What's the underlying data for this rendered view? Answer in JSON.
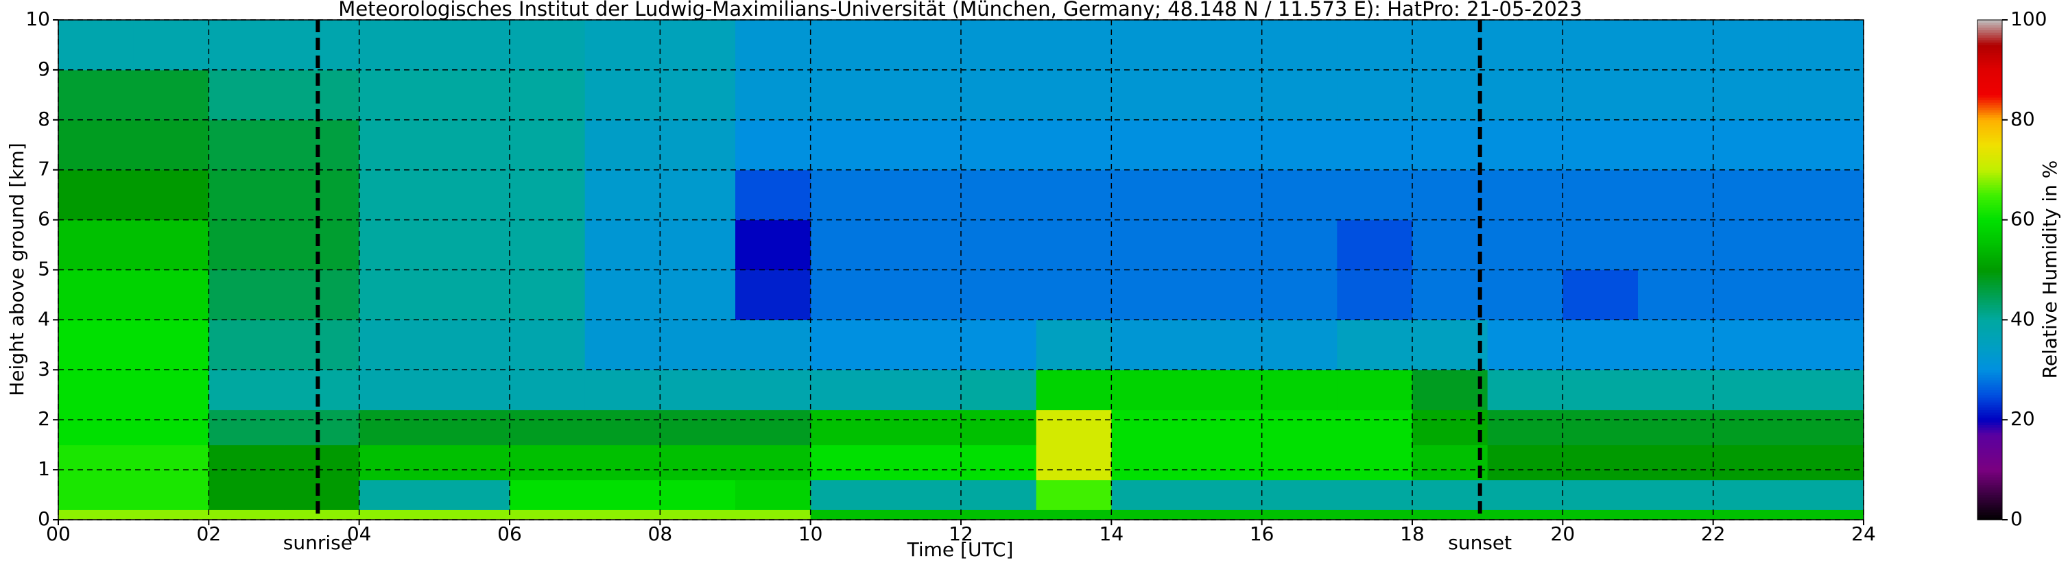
{
  "chart_data": {
    "type": "heatmap",
    "title": "Meteorologisches Institut der Ludwig-Maximilians-Universität (München, Germany; 48.148 N / 11.573 E):    HatPro: 21-05-2023",
    "x_label": "Time [UTC]",
    "y_label": "Height above ground [km]",
    "colorbar_label": "Relative Humidity in %",
    "x_bins": [
      0,
      1,
      2,
      3,
      4,
      5,
      6,
      7,
      8,
      9,
      10,
      11,
      12,
      13,
      14,
      15,
      16,
      17,
      18,
      19,
      20,
      21,
      22,
      23,
      24
    ],
    "y_bins": [
      0,
      0.2,
      0.8,
      1.5,
      2.2,
      3,
      4,
      5,
      6,
      7,
      8,
      9,
      10
    ],
    "values": [
      [
        68,
        68,
        68,
        68,
        68,
        68,
        68,
        68,
        68,
        68,
        55,
        55,
        55,
        55,
        55,
        55,
        55,
        55,
        55,
        55,
        55,
        55,
        55,
        55
      ],
      [
        62,
        62,
        50,
        50,
        40,
        40,
        60,
        60,
        60,
        58,
        40,
        40,
        40,
        65,
        40,
        40,
        40,
        40,
        40,
        40,
        40,
        40,
        40,
        40
      ],
      [
        62,
        62,
        50,
        50,
        55,
        55,
        55,
        55,
        55,
        55,
        60,
        60,
        60,
        72,
        60,
        60,
        60,
        60,
        55,
        50,
        50,
        50,
        50,
        50
      ],
      [
        60,
        60,
        45,
        45,
        48,
        48,
        48,
        48,
        48,
        48,
        55,
        55,
        55,
        72,
        60,
        60,
        60,
        60,
        52,
        48,
        48,
        48,
        48,
        48
      ],
      [
        60,
        60,
        40,
        40,
        38,
        38,
        38,
        38,
        38,
        38,
        38,
        38,
        40,
        58,
        58,
        58,
        58,
        58,
        48,
        40,
        40,
        40,
        40,
        40
      ],
      [
        60,
        60,
        42,
        42,
        38,
        38,
        38,
        32,
        32,
        32,
        30,
        30,
        30,
        35,
        32,
        32,
        32,
        35,
        35,
        30,
        30,
        30,
        30,
        30
      ],
      [
        58,
        58,
        45,
        45,
        40,
        40,
        40,
        32,
        32,
        22,
        28,
        28,
        28,
        28,
        28,
        28,
        28,
        26,
        28,
        28,
        25,
        28,
        28,
        28
      ],
      [
        55,
        55,
        47,
        47,
        40,
        40,
        40,
        32,
        32,
        20,
        28,
        28,
        28,
        28,
        28,
        28,
        28,
        25,
        28,
        28,
        28,
        28,
        28,
        28
      ],
      [
        50,
        50,
        47,
        47,
        40,
        40,
        40,
        33,
        33,
        25,
        28,
        28,
        28,
        28,
        28,
        28,
        28,
        28,
        28,
        28,
        28,
        28,
        28,
        28
      ],
      [
        48,
        48,
        46,
        46,
        40,
        40,
        40,
        34,
        34,
        30,
        30,
        30,
        30,
        30,
        30,
        30,
        30,
        30,
        30,
        30,
        30,
        30,
        30,
        30
      ],
      [
        47,
        47,
        42,
        42,
        40,
        40,
        40,
        36,
        36,
        32,
        32,
        32,
        32,
        32,
        32,
        32,
        32,
        32,
        32,
        32,
        32,
        32,
        32,
        32
      ],
      [
        38,
        38,
        38,
        38,
        38,
        38,
        38,
        36,
        36,
        32,
        32,
        32,
        32,
        32,
        32,
        32,
        32,
        32,
        32,
        32,
        32,
        32,
        32,
        32
      ]
    ],
    "xlim": [
      0,
      24
    ],
    "xticks": [
      {
        "value": 0,
        "label": "00"
      },
      {
        "value": 2,
        "label": "02"
      },
      {
        "value": 4,
        "label": "04"
      },
      {
        "value": 6,
        "label": "06"
      },
      {
        "value": 8,
        "label": "08"
      },
      10,
      12,
      14,
      16,
      18,
      20,
      22,
      24
    ],
    "ylim": [
      0,
      10
    ],
    "yticks": [
      0,
      1,
      2,
      3,
      4,
      5,
      6,
      7,
      8,
      9,
      10
    ],
    "clim": [
      0,
      100
    ],
    "cticks": [
      0,
      20,
      40,
      60,
      80,
      100
    ],
    "grid": true,
    "colorscale": [
      {
        "value": 0,
        "color": "#000000"
      },
      {
        "value": 5,
        "color": "#3a0040"
      },
      {
        "value": 10,
        "color": "#7a0080"
      },
      {
        "value": 17,
        "color": "#5a00a0"
      },
      {
        "value": 20,
        "color": "#0000c0"
      },
      {
        "value": 25,
        "color": "#0050e0"
      },
      {
        "value": 30,
        "color": "#0090e0"
      },
      {
        "value": 35,
        "color": "#00a0c0"
      },
      {
        "value": 40,
        "color": "#00a8a0"
      },
      {
        "value": 45,
        "color": "#00a050"
      },
      {
        "value": 50,
        "color": "#009a00"
      },
      {
        "value": 55,
        "color": "#00c000"
      },
      {
        "value": 60,
        "color": "#00e000"
      },
      {
        "value": 65,
        "color": "#40f000"
      },
      {
        "value": 70,
        "color": "#c0f000"
      },
      {
        "value": 75,
        "color": "#f0e000"
      },
      {
        "value": 80,
        "color": "#ffb000"
      },
      {
        "value": 85,
        "color": "#f00000"
      },
      {
        "value": 90,
        "color": "#e00000"
      },
      {
        "value": 95,
        "color": "#b00000"
      },
      {
        "value": 100,
        "color": "#c0c0c0"
      }
    ],
    "markers": [
      {
        "label": "sunrise",
        "x": 3.45
      },
      {
        "label": "sunset",
        "x": 18.9
      }
    ]
  }
}
